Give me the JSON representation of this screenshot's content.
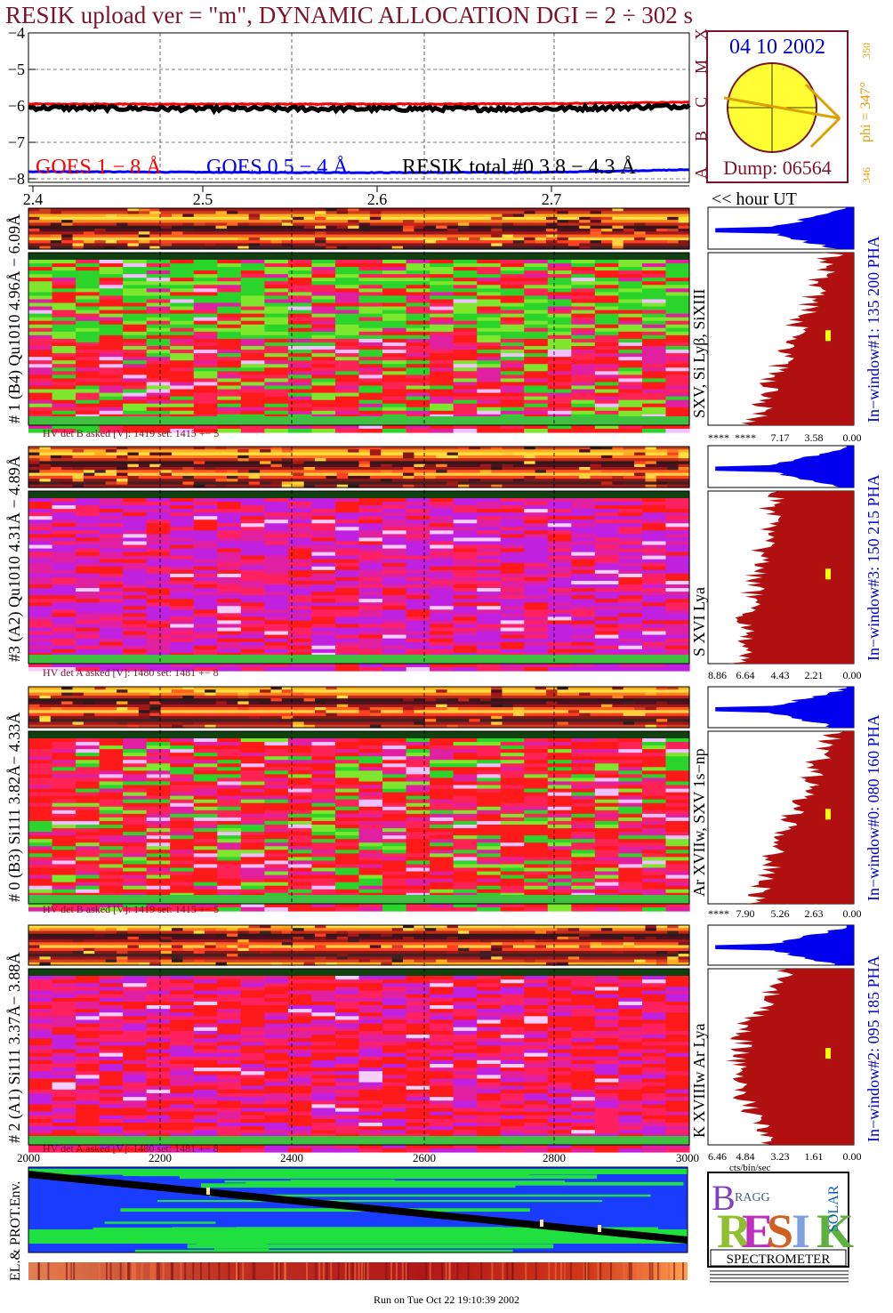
{
  "header": {
    "title": "RESIK upload ver = \"m\", DYNAMIC ALLOCATION  DGI =   2 ÷ 302 s"
  },
  "goes": {
    "y_ticks": [
      "−4",
      "−5",
      "−6",
      "−7",
      "−8"
    ],
    "flare_classes": [
      "X",
      "M",
      "C",
      "B",
      "A"
    ],
    "legend": [
      {
        "label": "GOES 1 − 8 Å",
        "color": "#ff0000"
      },
      {
        "label": "GOES 0.5 − 4 Å",
        "color": "#0000ff"
      },
      {
        "label": "RESIK total #0  3.8 − 4.3 Å",
        "color": "#000000"
      }
    ]
  },
  "time_axis": {
    "ticks": [
      "2.4",
      "2.5",
      "2.6",
      "2.7"
    ],
    "label": "<< hour UT"
  },
  "sun": {
    "date": "04 10 2002",
    "dump": "Dump: 06564",
    "phi": "phi = 347°",
    "phi_top": "350",
    "phi_bottom": "346"
  },
  "channels": [
    {
      "id": "ch1",
      "left_label": "# 1 (B4) Qu1010 4.96Å − 6.09Å",
      "line_label": "SXV, Si Lyβ, SiXIII",
      "hv": "HV det B asked [V]:  1419 set:  1415  +−    5",
      "window": "In−window#1:  135 200 PHA",
      "ticks": [
        "****",
        "****",
        "7.17",
        "3.58",
        "0.00"
      ],
      "bg": "red"
    },
    {
      "id": "ch3",
      "left_label": "#3 (A2) Qu1010  4.31Å − 4.89Å",
      "line_label": "S XVI Lya",
      "hv": "HV det A asked [V]:  1480 set:  1481  +−    8",
      "window": "In−window#3:  150 215 PHA",
      "ticks": [
        "8.86",
        "6.64",
        "4.43",
        "2.21",
        "0.00"
      ],
      "bg": "purple"
    },
    {
      "id": "ch0",
      "left_label": "# 0 (B3) Si111  3.82Å− 4.33Å",
      "line_label": "Ar XVIIw,  SXV 1s−np",
      "hv": "HV det B asked [V]:  1419 set:  1415  +−    5",
      "window": "In−window#0:  080 160 PHA",
      "ticks": [
        "****",
        "7.90",
        "5.26",
        "2.63",
        "0.00"
      ],
      "bg": "red"
    },
    {
      "id": "ch2",
      "left_label": "# 2 (A1) Si111  3.37Å− 3.88Å",
      "line_label": "K XVIIIw  Ar Lya",
      "hv": "HV det A asked [V]:  1480 set:  1481  +−    8",
      "window": "In−window#2:  095 185 PHA",
      "ticks": [
        "6.46",
        "4.84",
        "3.23",
        "1.61",
        "0.00"
      ],
      "bg": "mixed"
    }
  ],
  "hist_units": "cts/bin/sec",
  "env": {
    "label": "EL.& PROT.Env.",
    "ticks": [
      "2000",
      "2200",
      "2400",
      "2600",
      "2800",
      "3000"
    ]
  },
  "logo": {
    "letters_back": "BRAGG",
    "resik": "RESIK",
    "solar": "SOLAR",
    "banner": "SPECTROMETER"
  },
  "footer": {
    "run": "Run on Tue Oct 22 19:10:39 2002"
  },
  "chart_data": {
    "type": "line",
    "title": "RESIK upload ver = \"m\", DYNAMIC ALLOCATION  DGI =   2 ÷ 302 s",
    "xlabel": "<< hour UT",
    "xlim": [
      2.4,
      2.78
    ],
    "ylim": [
      -8,
      -4
    ],
    "series": [
      {
        "name": "GOES 1 − 8 Å",
        "x": [
          2.4,
          2.5,
          2.6,
          2.7,
          2.78
        ],
        "values": [
          -5.95,
          -5.95,
          -5.95,
          -5.94,
          -5.9
        ]
      },
      {
        "name": "GOES 0.5 − 4 Å",
        "x": [
          2.4,
          2.5,
          2.6,
          2.7,
          2.78
        ],
        "values": [
          -7.8,
          -7.82,
          -7.83,
          -7.82,
          -7.75
        ]
      },
      {
        "name": "RESIK total #0  3.8 − 4.3 Å",
        "x": [
          2.4,
          2.5,
          2.6,
          2.7,
          2.78
        ],
        "values": [
          -6.05,
          -6.08,
          -6.08,
          -6.08,
          -6.0
        ]
      }
    ]
  }
}
